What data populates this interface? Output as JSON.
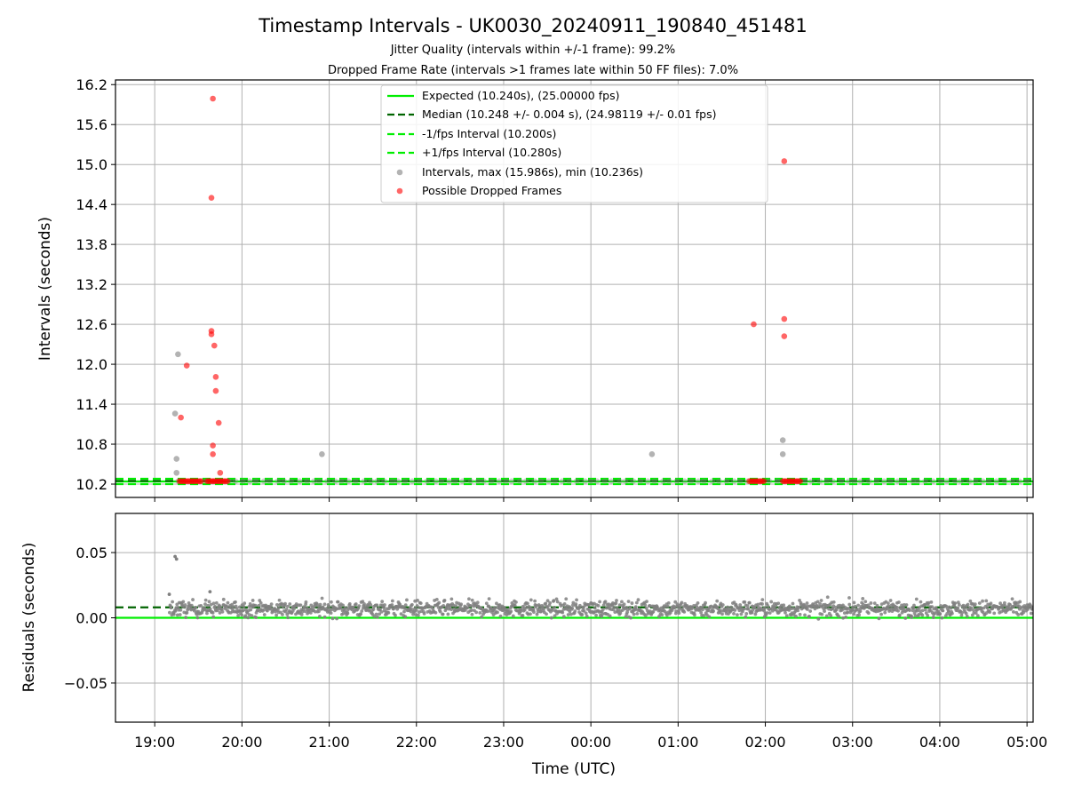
{
  "chart_data": [
    {
      "type": "scatter",
      "title": "Timestamp Intervals - UK0030_20240911_190840_451481",
      "subtitle_1": "Jitter Quality (intervals within +/-1 frame): 99.2%",
      "subtitle_2": "Dropped Frame Rate (intervals >1 frames late within 50 FF files): 7.0%",
      "ylabel": "Intervals (seconds)",
      "ylim": [
        10.0,
        16.27
      ],
      "yticks": [
        "10.2",
        "10.8",
        "11.4",
        "12.0",
        "12.6",
        "13.2",
        "13.8",
        "14.4",
        "15.0",
        "15.6",
        "16.2"
      ],
      "xlim_hours": [
        -0.45,
        10.07
      ],
      "grid": true,
      "legend_position": "upper center",
      "legend": [
        "Expected (10.240s), (25.00000 fps)",
        "Median (10.248 +/- 0.004 s), (24.98119 +/- 0.01 fps)",
        "-1/fps Interval (10.200s)",
        "+1/fps Interval (10.280s)",
        "Intervals, max (15.986s), min (10.236s)",
        "Possible Dropped Frames"
      ],
      "lines": [
        {
          "name": "Expected",
          "value": 10.24,
          "color": "#00ee00",
          "style": "solid"
        },
        {
          "name": "Median",
          "value": 10.248,
          "color": "#006400",
          "style": "dashed"
        },
        {
          "name": "-1/fps Interval",
          "value": 10.2,
          "color": "#00ee00",
          "style": "dashed"
        },
        {
          "name": "+1/fps Interval",
          "value": 10.28,
          "color": "#00ee00",
          "style": "dashed"
        }
      ],
      "gray_points": [
        {
          "t": "19:14",
          "y": 11.26
        },
        {
          "t": "19:16",
          "y": 12.15
        },
        {
          "t": "19:15",
          "y": 10.58
        },
        {
          "t": "19:15",
          "y": 10.37
        },
        {
          "t": "20:55",
          "y": 10.65
        },
        {
          "t": "00:42",
          "y": 10.65
        },
        {
          "t": "02:12",
          "y": 10.86
        },
        {
          "t": "02:12",
          "y": 10.65
        }
      ],
      "red_points": [
        {
          "t": "19:18",
          "y": 11.2
        },
        {
          "t": "19:22",
          "y": 11.98
        },
        {
          "t": "19:39",
          "y": 12.5
        },
        {
          "t": "19:39",
          "y": 12.45
        },
        {
          "t": "19:39",
          "y": 14.5
        },
        {
          "t": "19:40",
          "y": 15.99
        },
        {
          "t": "19:40",
          "y": 10.78
        },
        {
          "t": "19:40",
          "y": 10.65
        },
        {
          "t": "19:41",
          "y": 12.28
        },
        {
          "t": "19:42",
          "y": 11.81
        },
        {
          "t": "19:42",
          "y": 11.6
        },
        {
          "t": "19:44",
          "y": 11.12
        },
        {
          "t": "19:45",
          "y": 10.37
        },
        {
          "t": "01:52",
          "y": 12.6
        },
        {
          "t": "02:13",
          "y": 15.05
        },
        {
          "t": "02:13",
          "y": 12.68
        },
        {
          "t": "02:13",
          "y": 12.42
        }
      ],
      "red_cluster_ranges": [
        {
          "start": "19:17",
          "end": "19:32",
          "y": 10.244
        },
        {
          "start": "19:36",
          "end": "19:50",
          "y": 10.244
        },
        {
          "start": "01:49",
          "end": "01:59",
          "y": 10.244
        },
        {
          "start": "02:12",
          "end": "02:24",
          "y": 10.244
        }
      ]
    },
    {
      "type": "scatter",
      "ylabel": "Residuals (seconds)",
      "xlabel": "Time (UTC)",
      "ylim": [
        -0.08,
        0.08
      ],
      "yticks": [
        "0.05",
        "0.00",
        "−0.05"
      ],
      "xticks": [
        "19:00",
        "20:00",
        "21:00",
        "22:00",
        "23:00",
        "00:00",
        "01:00",
        "02:00",
        "03:00",
        "04:00",
        "05:00"
      ],
      "grid": true,
      "lines": [
        {
          "name": "Expected",
          "value": 0.0,
          "color": "#00ee00",
          "style": "solid"
        },
        {
          "name": "Median",
          "value": 0.008,
          "color": "#006400",
          "style": "dashed"
        }
      ],
      "residual_band": {
        "center": 0.007,
        "spread": 0.006,
        "max": 0.02,
        "min": -0.005
      },
      "outliers": [
        {
          "t": "19:14",
          "y": 0.047
        },
        {
          "t": "19:15",
          "y": 0.045
        },
        {
          "t": "19:10",
          "y": 0.018
        },
        {
          "t": "19:38",
          "y": 0.02
        }
      ]
    }
  ],
  "colors": {
    "expected": "#00ee00",
    "median": "#006400",
    "intervals_gray": "#808080",
    "dropped_red": "#ff0000",
    "grid": "#b0b0b0"
  }
}
